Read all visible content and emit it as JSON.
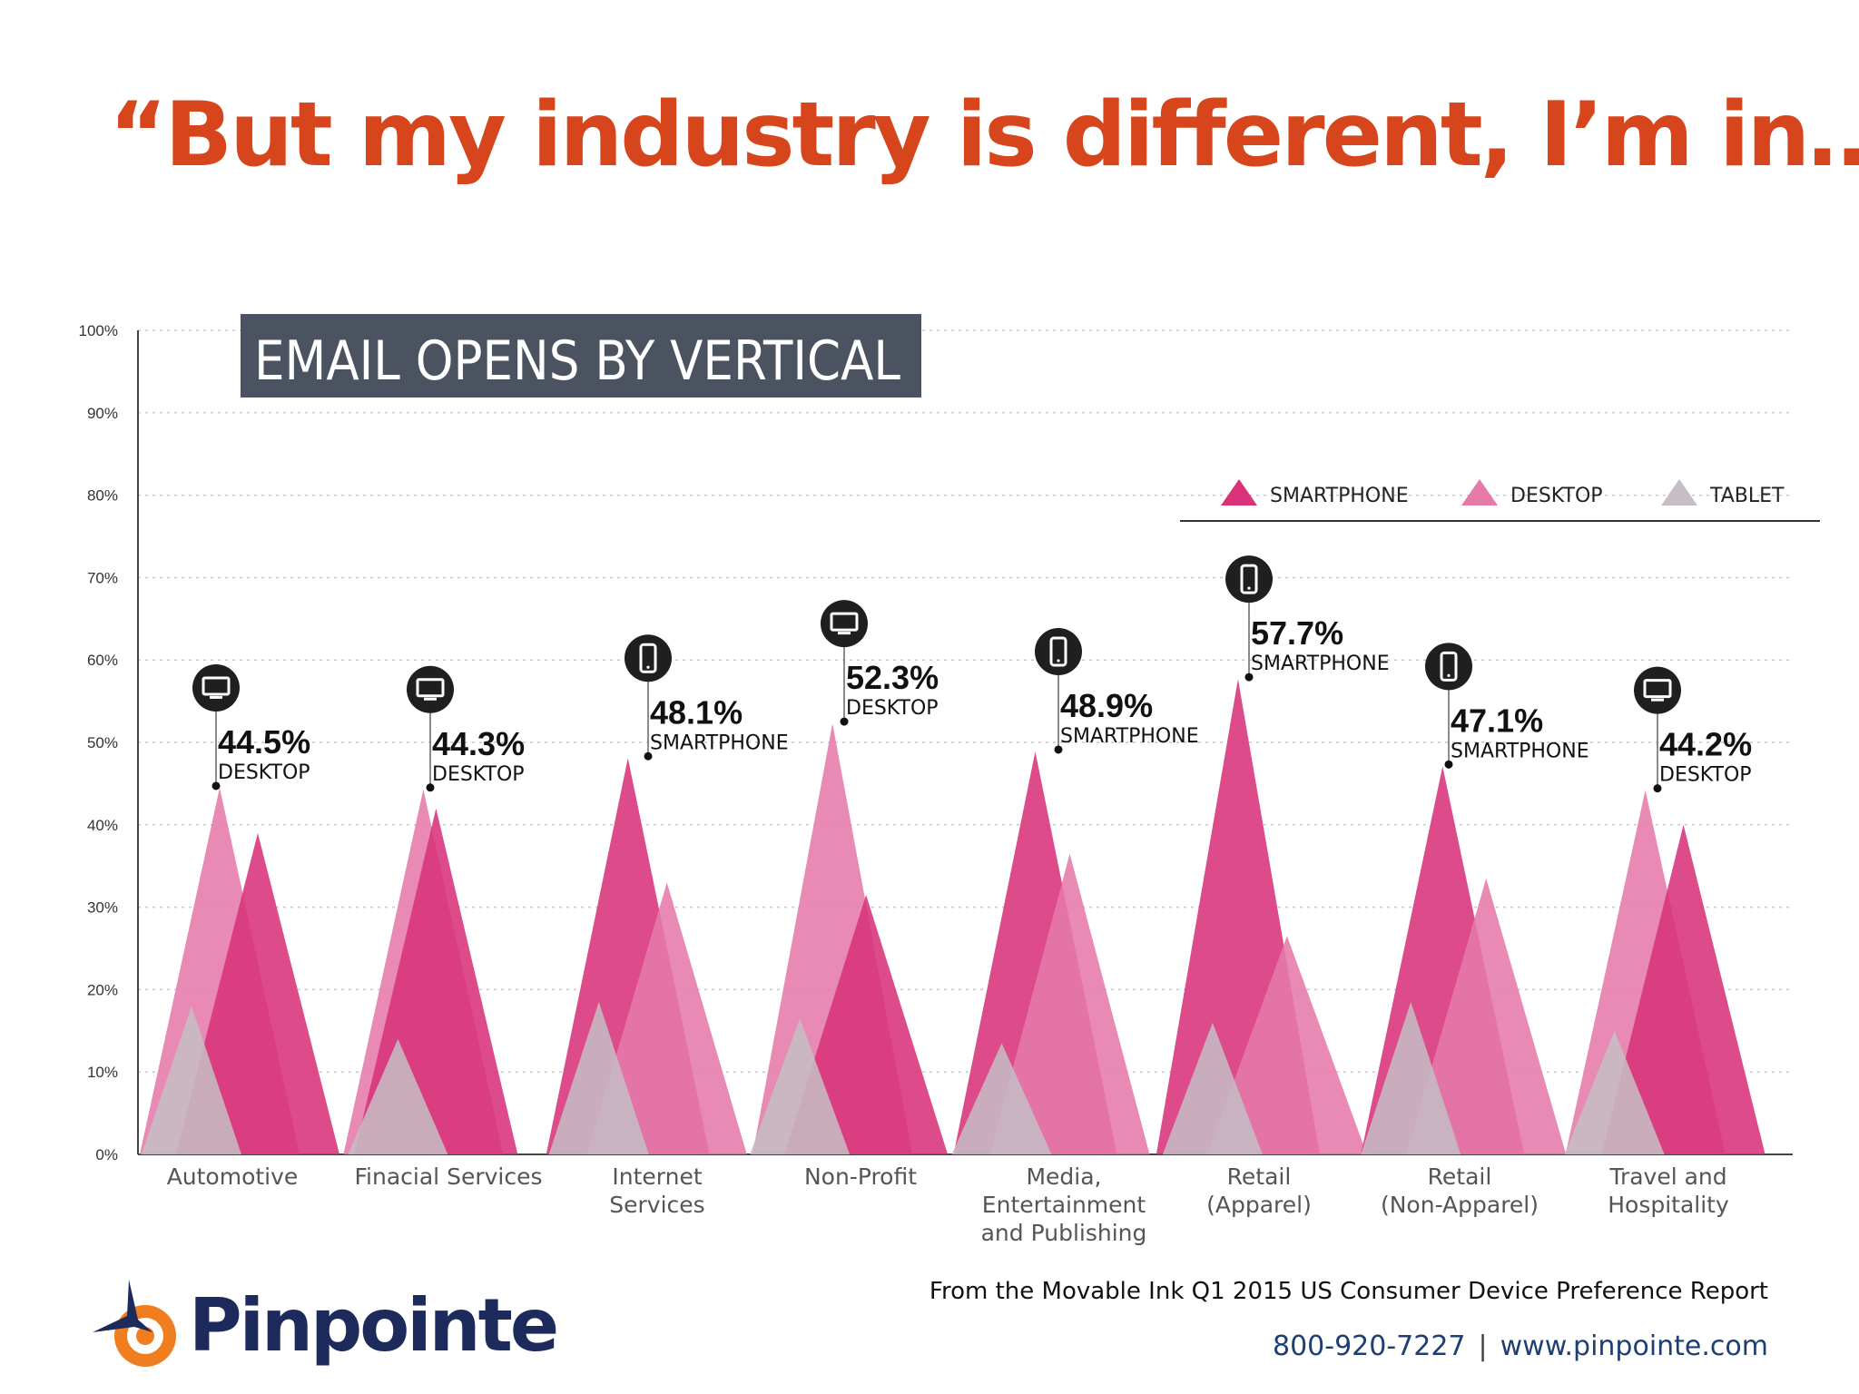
{
  "headline": "“But my industry is different, I’m in…”",
  "chart_data": {
    "type": "area",
    "title": "EMAIL OPENS BY VERTICAL",
    "ylim": [
      0,
      100
    ],
    "yticks": [
      0,
      10,
      20,
      30,
      40,
      50,
      60,
      70,
      80,
      90,
      100
    ],
    "ytick_labels": [
      "0%",
      "10%",
      "20%",
      "30%",
      "40%",
      "50%",
      "60%",
      "70%",
      "80%",
      "90%",
      "100%"
    ],
    "grid": true,
    "legend_position": "top-right",
    "categories": [
      "Automotive",
      "Finacial Services",
      "Internet Services",
      "Non-Profit",
      "Media, Entertainment and Publishing",
      "Retail (Apparel)",
      "Retail (Non-Apparel)",
      "Travel and Hospitality"
    ],
    "category_lines": [
      [
        "Automotive"
      ],
      [
        "Finacial Services"
      ],
      [
        "Internet",
        "Services"
      ],
      [
        "Non-Profit"
      ],
      [
        "Media,",
        "Entertainment",
        "and Publishing"
      ],
      [
        "Retail",
        "(Apparel)"
      ],
      [
        "Retail",
        "(Non-Apparel)"
      ],
      [
        "Travel and",
        "Hospitality"
      ]
    ],
    "series": [
      {
        "name": "SMARTPHONE",
        "color": "#d8327a",
        "values": [
          39,
          42,
          48.1,
          31.5,
          48.9,
          57.7,
          47.1,
          40
        ]
      },
      {
        "name": "DESKTOP",
        "color": "#e57aa8",
        "values": [
          44.5,
          44.3,
          33,
          52.3,
          36.5,
          26.5,
          33.5,
          44.2
        ]
      },
      {
        "name": "TABLET",
        "color": "#c6bec4",
        "values": [
          18,
          14,
          18.5,
          16.5,
          13.5,
          16,
          18.5,
          15
        ]
      }
    ],
    "annotations": [
      {
        "category": "Automotive",
        "value_label": "44.5%",
        "device": "DESKTOP",
        "value": 44.5,
        "icon": "desktop-icon"
      },
      {
        "category": "Finacial Services",
        "value_label": "44.3%",
        "device": "DESKTOP",
        "value": 44.3,
        "icon": "desktop-icon"
      },
      {
        "category": "Internet Services",
        "value_label": "48.1%",
        "device": "SMARTPHONE",
        "value": 48.1,
        "icon": "smartphone-icon"
      },
      {
        "category": "Non-Profit",
        "value_label": "52.3%",
        "device": "DESKTOP",
        "value": 52.3,
        "icon": "desktop-icon"
      },
      {
        "category": "Media, Entertainment and Publishing",
        "value_label": "48.9%",
        "device": "SMARTPHONE",
        "value": 48.9,
        "icon": "smartphone-icon"
      },
      {
        "category": "Retail (Apparel)",
        "value_label": "57.7%",
        "device": "SMARTPHONE",
        "value": 57.7,
        "icon": "smartphone-icon"
      },
      {
        "category": "Retail (Non-Apparel)",
        "value_label": "47.1%",
        "device": "SMARTPHONE",
        "value": 47.1,
        "icon": "smartphone-icon"
      },
      {
        "category": "Travel and Hospitality",
        "value_label": "44.2%",
        "device": "DESKTOP",
        "value": 44.2,
        "icon": "desktop-icon"
      }
    ]
  },
  "footer": {
    "source": "From the Movable Ink Q1 2015 US Consumer Device Preference Report",
    "phone": "800-920-7227",
    "separator": "|",
    "website": "www.pinpointe.com"
  },
  "logo": {
    "wordmark": "Pinpointe",
    "colors": {
      "navy": "#1d2a5c",
      "orange": "#f07e1e"
    }
  },
  "colors": {
    "headline": "#d6451b",
    "title_box": "#4b5260",
    "icon_badge": "#1f1f1f",
    "grid": "#c9c9c9"
  }
}
